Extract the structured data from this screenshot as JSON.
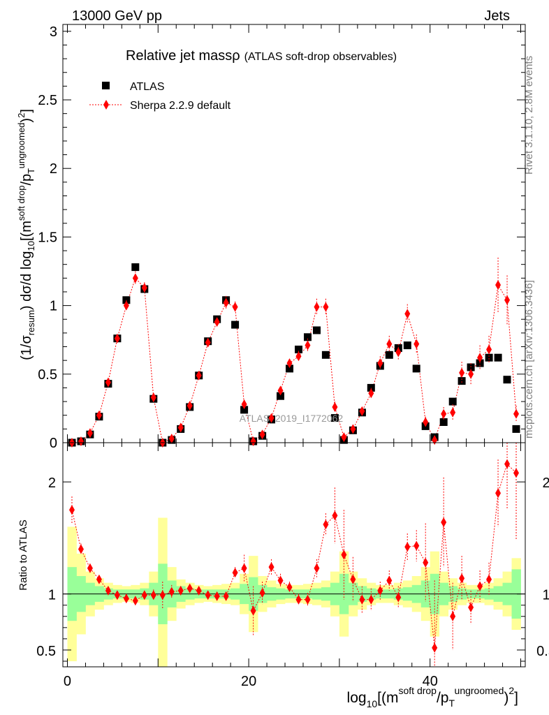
{
  "header": {
    "left": "13000 GeV pp",
    "right": "Jets"
  },
  "side_labels": {
    "rivet": "Rivet 3.1.10,  2.8M events",
    "mcplots": "mcplots.cern.ch [arXiv:1306.3436]"
  },
  "watermark": "ATLAS_2019_I1772062",
  "colors": {
    "data": "#000000",
    "mc": "#ff0000",
    "band_inner": "#99ff99",
    "band_outer": "#ffff99"
  },
  "chart_data": [
    {
      "type": "scatter",
      "title": "Relative jet massρ",
      "subtitle": "(ATLAS soft-drop observables)",
      "ylabel": "(1/σresum) dσ/d log10[(m soft drop / pT ungroomed)²]",
      "ylim": [
        0,
        3.05
      ],
      "xlim": [
        -0.5,
        50.5
      ],
      "yticks": [
        "0",
        "0.5",
        "1",
        "1.5",
        "2",
        "2.5",
        "3"
      ],
      "legend": [
        "ATLAS",
        "Sherpa 2.2.9 default"
      ],
      "legend_position": "top-left",
      "x": [
        0.5,
        1.5,
        2.5,
        3.5,
        4.5,
        5.5,
        6.5,
        7.5,
        8.5,
        9.5,
        10.5,
        11.5,
        12.5,
        13.5,
        14.5,
        15.5,
        16.5,
        17.5,
        18.5,
        19.5,
        20.5,
        21.5,
        22.5,
        23.5,
        24.5,
        25.5,
        26.5,
        27.5,
        28.5,
        29.5,
        30.5,
        31.5,
        32.5,
        33.5,
        34.5,
        35.5,
        36.5,
        37.5,
        38.5,
        39.5,
        40.5,
        41.5,
        42.5,
        43.5,
        44.5,
        45.5,
        46.5,
        47.5,
        48.5,
        49.5
      ],
      "series": [
        {
          "name": "ATLAS",
          "values": [
            0.0,
            0.01,
            0.06,
            0.19,
            0.43,
            0.76,
            1.04,
            1.28,
            1.12,
            0.32,
            0.0,
            0.02,
            0.1,
            0.26,
            0.49,
            0.74,
            0.9,
            1.04,
            0.86,
            0.24,
            0.01,
            0.05,
            0.17,
            0.34,
            0.54,
            0.68,
            0.77,
            0.82,
            0.64,
            0.18,
            0.02,
            0.09,
            0.22,
            0.4,
            0.56,
            0.64,
            0.69,
            0.71,
            0.54,
            0.12,
            0.04,
            0.15,
            0.3,
            0.45,
            0.55,
            0.58,
            0.62,
            0.62,
            0.46,
            0.1
          ]
        },
        {
          "name": "Sherpa 2.2.9 default",
          "values": [
            0.0,
            0.01,
            0.07,
            0.2,
            0.44,
            0.76,
            1.0,
            1.2,
            1.13,
            0.33,
            0.0,
            0.03,
            0.11,
            0.27,
            0.49,
            0.73,
            0.88,
            1.02,
            0.99,
            0.28,
            0.01,
            0.06,
            0.18,
            0.38,
            0.58,
            0.63,
            0.71,
            0.99,
            0.99,
            0.26,
            0.04,
            0.1,
            0.23,
            0.36,
            0.58,
            0.72,
            0.66,
            0.94,
            0.72,
            0.15,
            0.02,
            0.21,
            0.22,
            0.51,
            0.5,
            0.62,
            0.68,
            1.15,
            1.04,
            0.21
          ],
          "errors": [
            0.0,
            0.0,
            0.01,
            0.02,
            0.02,
            0.03,
            0.04,
            0.05,
            0.04,
            0.03,
            0.0,
            0.01,
            0.01,
            0.02,
            0.02,
            0.03,
            0.03,
            0.05,
            0.04,
            0.03,
            0.01,
            0.01,
            0.02,
            0.03,
            0.03,
            0.04,
            0.05,
            0.06,
            0.06,
            0.04,
            0.01,
            0.02,
            0.03,
            0.04,
            0.05,
            0.06,
            0.06,
            0.07,
            0.07,
            0.04,
            0.02,
            0.05,
            0.06,
            0.08,
            0.08,
            0.09,
            0.1,
            0.2,
            0.18,
            0.06
          ]
        }
      ]
    },
    {
      "type": "scatter",
      "ylabel": "Ratio to ATLAS",
      "xlabel": "log10[(m soft drop / pT ungroomed)²]",
      "ylim": [
        0.35,
        2.35
      ],
      "xlim": [
        -0.5,
        50.5
      ],
      "xticks": [
        "0",
        "20",
        "40"
      ],
      "yticks": [
        "0.5",
        "1",
        "2"
      ],
      "x": [
        0.5,
        1.5,
        2.5,
        3.5,
        4.5,
        5.5,
        6.5,
        7.5,
        8.5,
        9.5,
        10.5,
        11.5,
        12.5,
        13.5,
        14.5,
        15.5,
        16.5,
        17.5,
        18.5,
        19.5,
        20.5,
        21.5,
        22.5,
        23.5,
        24.5,
        25.5,
        26.5,
        27.5,
        28.5,
        29.5,
        30.5,
        31.5,
        32.5,
        33.5,
        34.5,
        35.5,
        36.5,
        37.5,
        38.5,
        39.5,
        40.5,
        41.5,
        42.5,
        43.5,
        44.5,
        45.5,
        46.5,
        47.5,
        48.5,
        49.5
      ],
      "bands": {
        "inner_half_width": [
          0.24,
          0.16,
          0.1,
          0.07,
          0.05,
          0.04,
          0.04,
          0.04,
          0.05,
          0.1,
          0.27,
          0.12,
          0.07,
          0.05,
          0.04,
          0.04,
          0.04,
          0.04,
          0.05,
          0.09,
          0.15,
          0.08,
          0.06,
          0.05,
          0.04,
          0.04,
          0.04,
          0.05,
          0.06,
          0.1,
          0.18,
          0.1,
          0.07,
          0.05,
          0.04,
          0.04,
          0.05,
          0.06,
          0.08,
          0.12,
          0.18,
          0.1,
          0.07,
          0.05,
          0.04,
          0.04,
          0.05,
          0.07,
          0.1,
          0.22
        ],
        "outer_half_width": [
          0.6,
          0.36,
          0.2,
          0.14,
          0.1,
          0.08,
          0.07,
          0.08,
          0.1,
          0.2,
          0.68,
          0.24,
          0.13,
          0.1,
          0.08,
          0.07,
          0.08,
          0.09,
          0.1,
          0.18,
          0.34,
          0.16,
          0.12,
          0.09,
          0.08,
          0.08,
          0.09,
          0.1,
          0.12,
          0.2,
          0.38,
          0.2,
          0.14,
          0.1,
          0.08,
          0.08,
          0.1,
          0.12,
          0.16,
          0.24,
          0.38,
          0.2,
          0.14,
          0.1,
          0.08,
          0.08,
          0.1,
          0.14,
          0.2,
          0.32
        ]
      },
      "series": [
        {
          "name": "Sherpa 2.2.9 default / ATLAS",
          "values": [
            1.75,
            1.4,
            1.23,
            1.13,
            1.03,
            0.99,
            0.96,
            0.94,
            0.99,
            0.99,
            0.99,
            1.02,
            1.03,
            1.05,
            1.03,
            0.99,
            0.98,
            0.98,
            1.19,
            1.23,
            0.85,
            1.01,
            1.24,
            1.12,
            1.06,
            0.95,
            0.95,
            1.23,
            1.62,
            1.7,
            1.35,
            1.13,
            0.95,
            0.95,
            1.03,
            1.12,
            0.97,
            1.42,
            1.43,
            1.28,
            0.52,
            1.64,
            0.8,
            1.14,
            0.88,
            1.07,
            1.13,
            1.9,
            2.16,
            2.08
          ],
          "errors": [
            0.12,
            0.05,
            0.04,
            0.03,
            0.02,
            0.02,
            0.02,
            0.02,
            0.03,
            0.05,
            0.12,
            0.06,
            0.04,
            0.03,
            0.02,
            0.02,
            0.02,
            0.03,
            0.05,
            0.12,
            0.22,
            0.1,
            0.07,
            0.06,
            0.05,
            0.05,
            0.06,
            0.08,
            0.1,
            0.25,
            0.4,
            0.2,
            0.12,
            0.1,
            0.08,
            0.09,
            0.1,
            0.12,
            0.14,
            0.35,
            0.6,
            0.4,
            0.3,
            0.2,
            0.15,
            0.14,
            0.15,
            0.3,
            0.4,
            0.6
          ]
        }
      ]
    }
  ]
}
